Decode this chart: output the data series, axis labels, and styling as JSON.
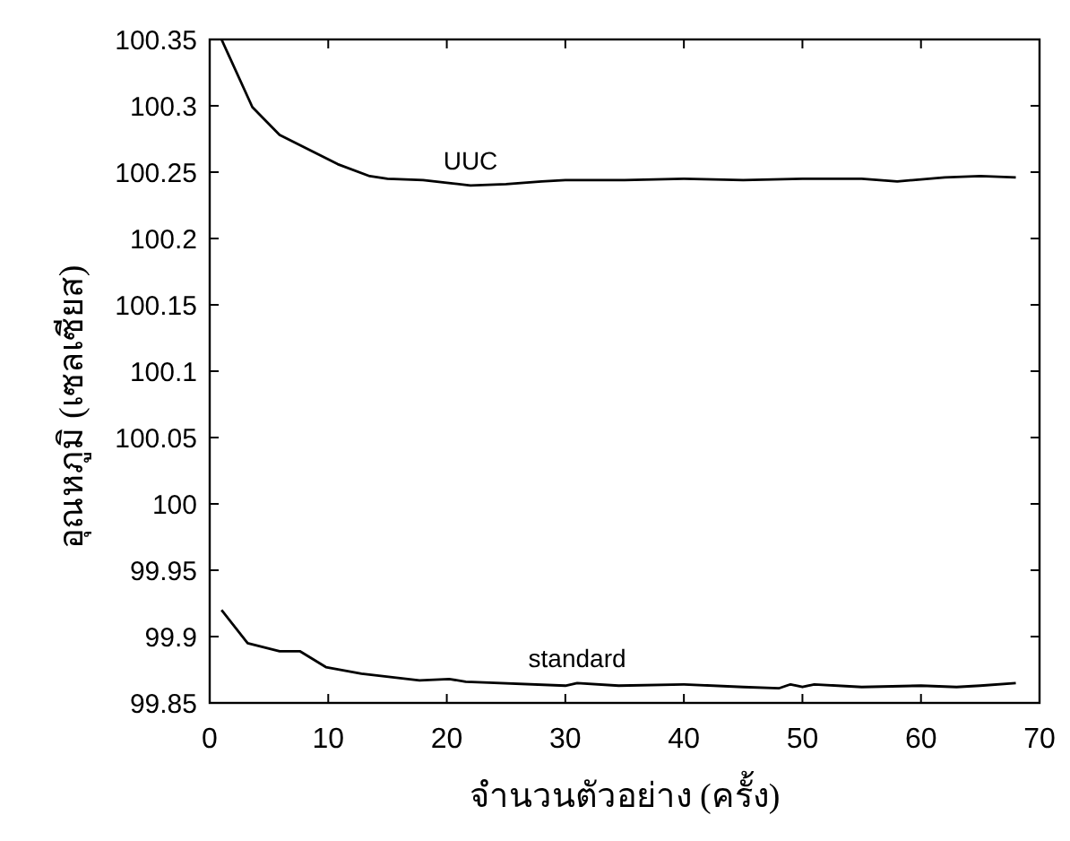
{
  "chart_data": {
    "type": "line",
    "xlabel": "จำนวนตัวอย่าง (ครั้ง)",
    "ylabel": "อุณหภูมิ (เซลเซียส)",
    "xlim": [
      0,
      70
    ],
    "xticks": [
      0,
      10,
      20,
      30,
      40,
      50,
      60,
      70
    ],
    "ylim": [
      99.85,
      100.35
    ],
    "yticks": [
      99.85,
      99.9,
      99.95,
      100,
      100.05,
      100.1,
      100.15,
      100.2,
      100.25,
      100.3,
      100.35
    ],
    "series": [
      {
        "name": "UUC",
        "color": "#000000",
        "x": [
          1,
          3.6,
          5.9,
          8.8,
          10.8,
          13.5,
          15,
          18,
          20,
          22,
          25,
          28,
          30,
          35,
          40,
          45,
          50,
          55,
          58,
          62,
          65,
          68
        ],
        "values": [
          100.35,
          100.299,
          100.278,
          100.265,
          100.256,
          100.247,
          100.245,
          100.244,
          100.242,
          100.24,
          100.241,
          100.243,
          100.244,
          100.244,
          100.245,
          100.244,
          100.245,
          100.245,
          100.243,
          100.246,
          100.247,
          100.246
        ]
      },
      {
        "name": "standard",
        "color": "#000000",
        "x": [
          1,
          3.2,
          5.9,
          7.6,
          9.8,
          12.8,
          17.7,
          20.2,
          21.6,
          30,
          31,
          34.5,
          40,
          45,
          48,
          49,
          50,
          51,
          55,
          60,
          63,
          65,
          68
        ],
        "values": [
          99.92,
          99.895,
          99.889,
          99.889,
          99.877,
          99.872,
          99.867,
          99.868,
          99.866,
          99.863,
          99.865,
          99.863,
          99.864,
          99.862,
          99.861,
          99.864,
          99.862,
          99.864,
          99.862,
          99.863,
          99.862,
          99.863,
          99.865
        ]
      }
    ],
    "grid": false,
    "line_style": "solid"
  }
}
